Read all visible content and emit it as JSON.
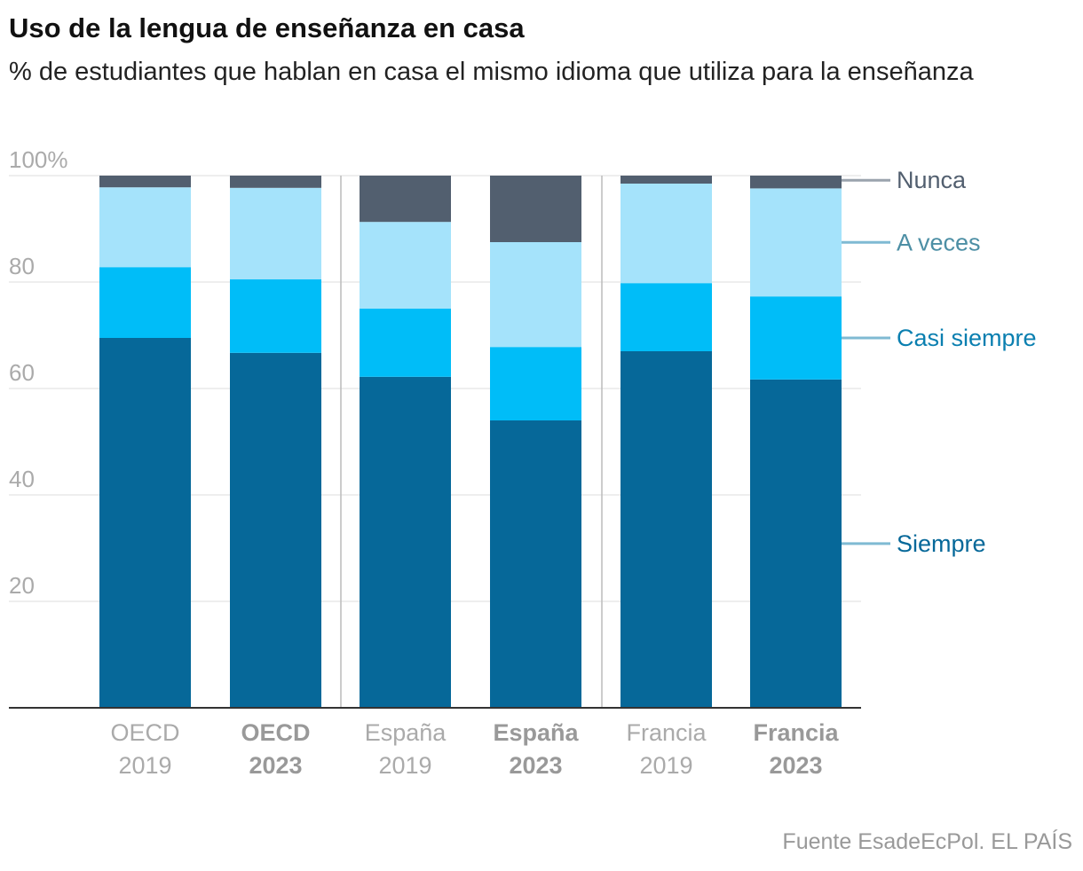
{
  "title": "Uso de la lengua de enseñanza en casa",
  "subtitle": "% de estudiantes que hablan en casa el mismo idioma que utiliza para la enseñanza",
  "source": "Fuente EsadeEcPol. EL PAÍS",
  "colors": {
    "siempre": "#066899",
    "casi_siempre": "#00bdf8",
    "a_veces": "#a5e3fb",
    "nunca": "#525f6f",
    "gridline": "#dddddd",
    "axis_text": "#aaaaaa",
    "baseline": "#333333"
  },
  "chart_data": {
    "type": "bar",
    "stacked": true,
    "ylim": [
      0,
      100
    ],
    "yticks": [
      20,
      40,
      60,
      80,
      100
    ],
    "ytick_labels": [
      "20",
      "40",
      "60",
      "80",
      "100%"
    ],
    "categories": [
      {
        "line1": "OECD",
        "line2": "2019",
        "bold": false
      },
      {
        "line1": "OECD",
        "line2": "2023",
        "bold": true
      },
      {
        "line1": "España",
        "line2": "2019",
        "bold": false
      },
      {
        "line1": "España",
        "line2": "2023",
        "bold": true
      },
      {
        "line1": "Francia",
        "line2": "2019",
        "bold": false
      },
      {
        "line1": "Francia",
        "line2": "2023",
        "bold": true
      }
    ],
    "series": [
      {
        "name": "Siempre",
        "key": "siempre",
        "label_color": "#066899",
        "values": [
          69.5,
          66.7,
          62.2,
          54.0,
          67.0,
          61.7
        ]
      },
      {
        "name": "Casi siempre",
        "key": "casi_siempre",
        "label_color": "#0a7fb0",
        "values": [
          13.3,
          13.8,
          12.8,
          13.8,
          12.8,
          15.6
        ]
      },
      {
        "name": "A veces",
        "key": "a_veces",
        "label_color": "#4d8fa5",
        "values": [
          15.0,
          17.2,
          16.3,
          19.7,
          18.7,
          20.3
        ]
      },
      {
        "name": "Nunca",
        "key": "nunca",
        "label_color": "#525f6f",
        "values": [
          2.2,
          2.3,
          8.7,
          12.5,
          1.5,
          2.4
        ]
      }
    ],
    "legend_position": "right, aligned to last bar segments"
  }
}
